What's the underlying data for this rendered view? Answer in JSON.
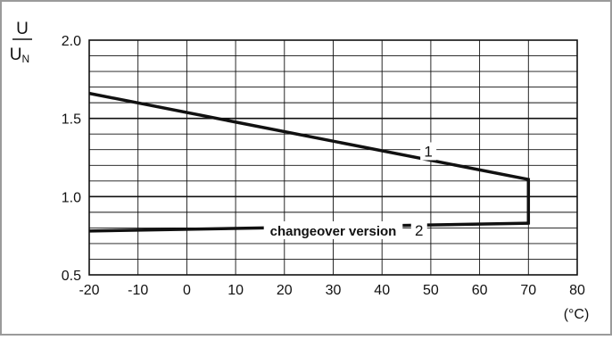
{
  "chart_data": {
    "type": "line",
    "ylabel_numerator": "U",
    "ylabel_denominator_main": "U",
    "ylabel_denominator_sub": "N",
    "xunit": "(°C)",
    "xlim": [
      -20,
      80
    ],
    "ylim": [
      0.5,
      2.0
    ],
    "xticks": [
      -20,
      -10,
      0,
      10,
      20,
      30,
      40,
      50,
      60,
      70,
      80
    ],
    "xtick_labels": [
      "-20",
      "-10",
      "0",
      "10",
      "20",
      "30",
      "40",
      "50",
      "60",
      "70",
      "80"
    ],
    "yticks": [
      0.5,
      1.0,
      1.5,
      2.0
    ],
    "ytick_labels": [
      "0.5",
      "1.0",
      "1.5",
      "2.0"
    ],
    "grid": true,
    "x_minor_step": 10,
    "y_minor_step": 0.1,
    "series": [
      {
        "name": "1",
        "x": [
          -20,
          70
        ],
        "y": [
          1.66,
          1.11
        ]
      },
      {
        "name": "2",
        "x": [
          -20,
          70
        ],
        "y": [
          0.78,
          0.83
        ]
      }
    ],
    "connector": {
      "x": [
        70,
        70
      ],
      "y": [
        0.83,
        1.11
      ]
    },
    "annotations": [
      {
        "text": "1",
        "x": 49.5,
        "y": 1.29
      },
      {
        "text": "2",
        "x": 47.6,
        "y": 0.785
      },
      {
        "text": "changeover version",
        "x": 30.0,
        "y": 0.785
      }
    ],
    "colors": {
      "frame": "#9a9a9a",
      "grid": "#111111",
      "line": "#111111",
      "background": "#ffffff"
    }
  }
}
